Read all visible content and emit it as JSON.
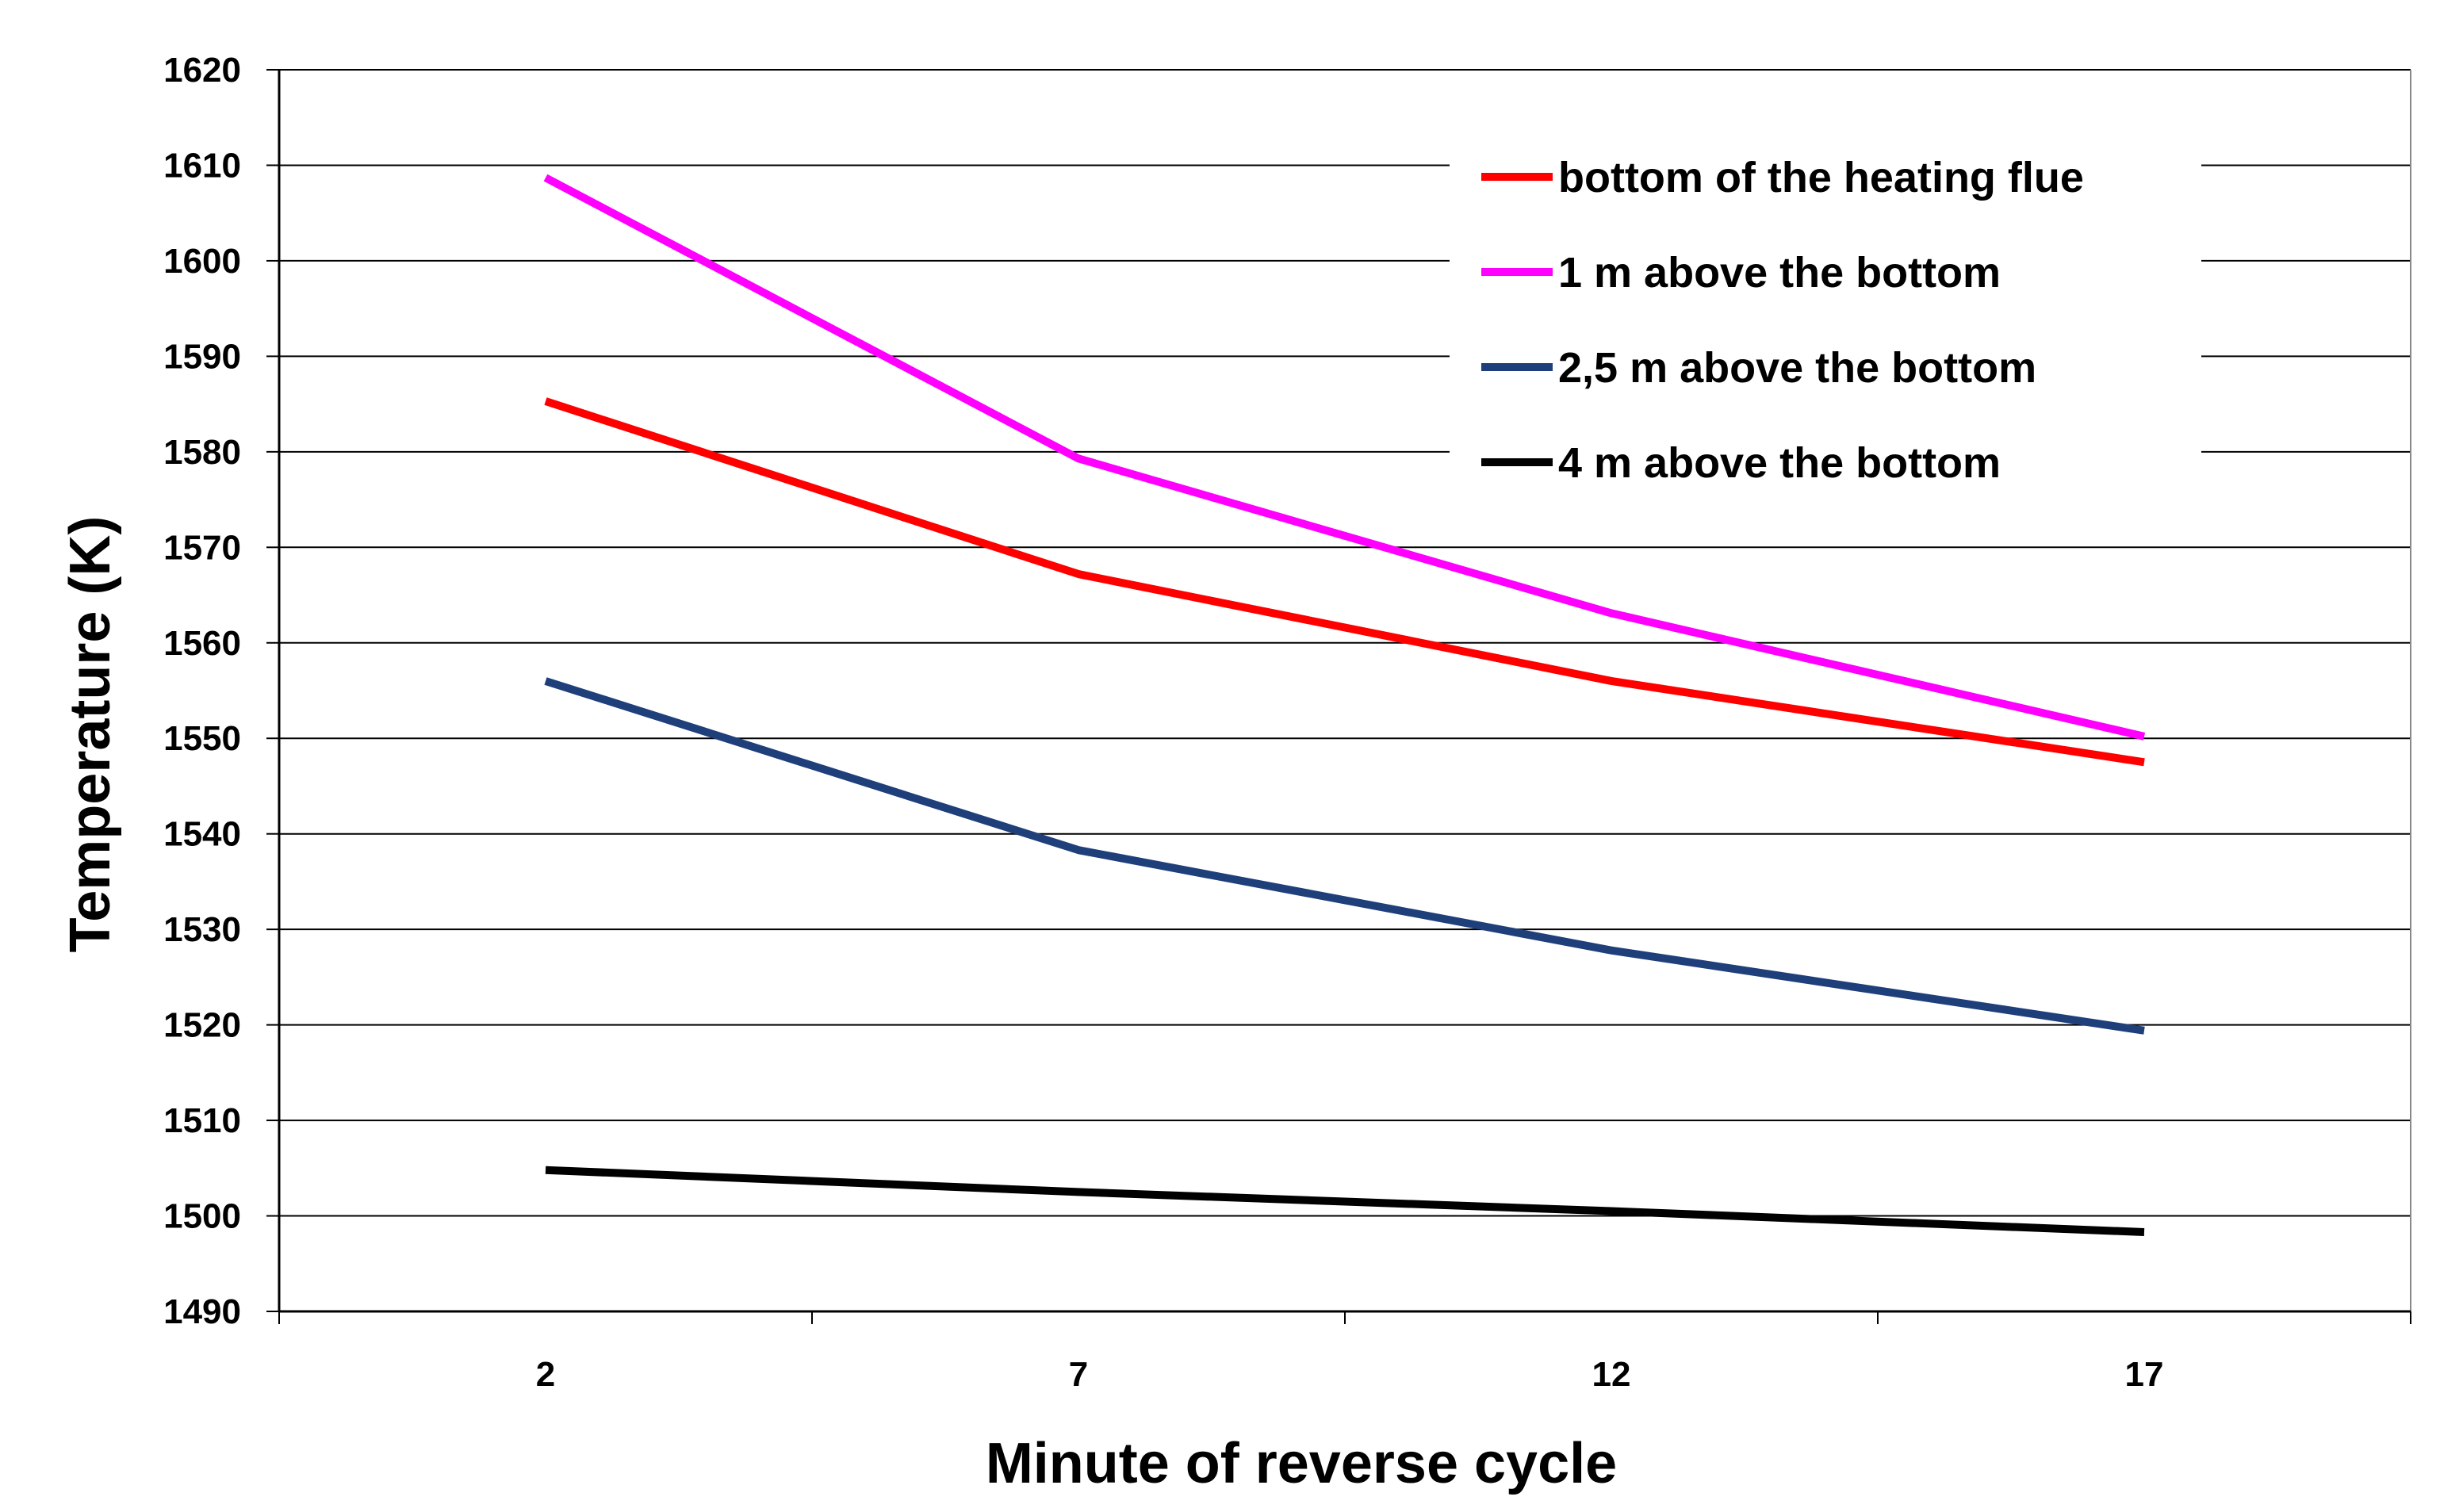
{
  "chart_data": {
    "type": "line",
    "title": "",
    "xlabel": "Minute of reverse cycle",
    "ylabel": "Temperature (K)",
    "categories": [
      "2",
      "7",
      "12",
      "17"
    ],
    "ylim": [
      1490,
      1620
    ],
    "yticks": [
      "1490",
      "1500",
      "1510",
      "1520",
      "1530",
      "1540",
      "1550",
      "1560",
      "1570",
      "1580",
      "1590",
      "1600",
      "1610",
      "1620"
    ],
    "grid": true,
    "legend_position": "top-right",
    "series": [
      {
        "name": "bottom of the heating flue",
        "color": "#ff0000",
        "values": [
          1585.3,
          1567.2,
          1556.0,
          1547.5
        ]
      },
      {
        "name": "1 m above the bottom",
        "color": "#ff00ff",
        "values": [
          1608.7,
          1579.3,
          1563.1,
          1550.2
        ]
      },
      {
        "name": "2,5 m above the bottom",
        "color": "#1f3f7a",
        "values": [
          1556.0,
          1538.3,
          1527.8,
          1519.4
        ]
      },
      {
        "name": "4 m above the bottom",
        "color": "#000000",
        "values": [
          1504.8,
          1502.5,
          1500.5,
          1498.3
        ]
      }
    ]
  }
}
